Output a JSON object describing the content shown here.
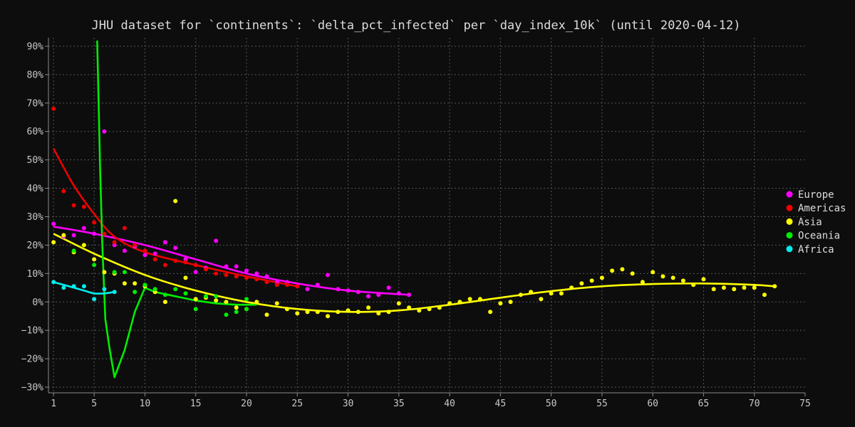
{
  "chart_data": {
    "type": "scatter",
    "title": "JHU dataset for `continents`: `delta_pct_infected` per `day_index_10k` (until 2020-04-12)",
    "xlabel": "",
    "ylabel": "",
    "xlim": [
      0.5,
      75
    ],
    "ylim": [
      -32,
      93
    ],
    "x_ticks": [
      1,
      5,
      10,
      15,
      20,
      25,
      30,
      35,
      40,
      45,
      50,
      55,
      60,
      65,
      70,
      75
    ],
    "y_ticks": [
      -30,
      -20,
      -10,
      0,
      10,
      20,
      30,
      40,
      50,
      60,
      70,
      80,
      90
    ],
    "y_tick_suffix": "%",
    "grid": true,
    "legend_position": "right",
    "series": [
      {
        "name": "Europe",
        "color": "#ff00ff",
        "points": [
          [
            1,
            27.5
          ],
          [
            2,
            23
          ],
          [
            3,
            23.5
          ],
          [
            4,
            26
          ],
          [
            5,
            24
          ],
          [
            6,
            60
          ],
          [
            7,
            20
          ],
          [
            8,
            18
          ],
          [
            9,
            19.5
          ],
          [
            10,
            16.5
          ],
          [
            11,
            17
          ],
          [
            12,
            21
          ],
          [
            13,
            19
          ],
          [
            14,
            15
          ],
          [
            15,
            10.5
          ],
          [
            16,
            12
          ],
          [
            17,
            21.5
          ],
          [
            18,
            12.5
          ],
          [
            19,
            12.5
          ],
          [
            20,
            11
          ],
          [
            21,
            10
          ],
          [
            22,
            9
          ],
          [
            23,
            7
          ],
          [
            24,
            7
          ],
          [
            25,
            5.5
          ],
          [
            26,
            4.5
          ],
          [
            27,
            6
          ],
          [
            28,
            9.5
          ],
          [
            29,
            4.5
          ],
          [
            30,
            4
          ],
          [
            31,
            3.5
          ],
          [
            32,
            2
          ],
          [
            33,
            2.5
          ],
          [
            34,
            5
          ],
          [
            35,
            3
          ],
          [
            36,
            2.5
          ]
        ],
        "trend": [
          [
            1,
            26.5
          ],
          [
            5,
            24
          ],
          [
            10,
            20
          ],
          [
            15,
            15
          ],
          [
            20,
            10
          ],
          [
            25,
            6.5
          ],
          [
            30,
            4
          ],
          [
            36,
            2.5
          ]
        ]
      },
      {
        "name": "Americas",
        "color": "#ee0000",
        "points": [
          [
            1,
            68
          ],
          [
            2,
            39
          ],
          [
            3,
            34
          ],
          [
            4,
            33.5
          ],
          [
            5,
            28
          ],
          [
            6,
            24
          ],
          [
            7,
            21
          ],
          [
            8,
            26
          ],
          [
            9,
            20
          ],
          [
            10,
            18
          ],
          [
            11,
            15
          ],
          [
            12,
            13
          ],
          [
            13,
            14.5
          ],
          [
            14,
            14
          ],
          [
            15,
            13
          ],
          [
            16,
            11.5
          ],
          [
            17,
            10
          ],
          [
            18,
            9.5
          ],
          [
            19,
            9
          ],
          [
            20,
            8.5
          ],
          [
            21,
            8
          ],
          [
            22,
            7
          ],
          [
            23,
            6
          ],
          [
            24,
            6
          ],
          [
            25,
            5.5
          ]
        ],
        "trend": [
          [
            1,
            54
          ],
          [
            3,
            41
          ],
          [
            5,
            31
          ],
          [
            7,
            23
          ],
          [
            10,
            17.5
          ],
          [
            15,
            13
          ],
          [
            20,
            9
          ],
          [
            25,
            5.5
          ]
        ]
      },
      {
        "name": "Asia",
        "color": "#ffff00",
        "points": [
          [
            1,
            21
          ],
          [
            2,
            23.5
          ],
          [
            3,
            17.5
          ],
          [
            4,
            20
          ],
          [
            5,
            15
          ],
          [
            6,
            10.5
          ],
          [
            7,
            10
          ],
          [
            8,
            6.5
          ],
          [
            9,
            6.5
          ],
          [
            10,
            5.5
          ],
          [
            11,
            3.5
          ],
          [
            12,
            0
          ],
          [
            13,
            35.5
          ],
          [
            14,
            8.5
          ],
          [
            15,
            1
          ],
          [
            16,
            1.5
          ],
          [
            17,
            0.5
          ],
          [
            18,
            0
          ],
          [
            19,
            -2
          ],
          [
            20,
            -2.5
          ],
          [
            21,
            0
          ],
          [
            22,
            -4.5
          ],
          [
            23,
            -0.5
          ],
          [
            24,
            -2.5
          ],
          [
            25,
            -4
          ],
          [
            26,
            -3.5
          ],
          [
            27,
            -3.5
          ],
          [
            28,
            -5
          ],
          [
            29,
            -3.5
          ],
          [
            30,
            -3
          ],
          [
            31,
            -3.5
          ],
          [
            32,
            -2
          ],
          [
            33,
            -4
          ],
          [
            34,
            -3.5
          ],
          [
            35,
            -0.5
          ],
          [
            36,
            -2
          ],
          [
            37,
            -3
          ],
          [
            38,
            -2.5
          ],
          [
            39,
            -2
          ],
          [
            40,
            -0.5
          ],
          [
            41,
            0
          ],
          [
            42,
            1
          ],
          [
            43,
            1
          ],
          [
            44,
            -3.5
          ],
          [
            45,
            -0.5
          ],
          [
            46,
            0
          ],
          [
            47,
            2.5
          ],
          [
            48,
            3.5
          ],
          [
            49,
            1
          ],
          [
            50,
            3
          ],
          [
            51,
            3
          ],
          [
            52,
            5
          ],
          [
            53,
            6.5
          ],
          [
            54,
            7.5
          ],
          [
            55,
            8.5
          ],
          [
            56,
            11
          ],
          [
            57,
            11.5
          ],
          [
            58,
            10
          ],
          [
            59,
            7
          ],
          [
            60,
            10.5
          ],
          [
            61,
            9
          ],
          [
            62,
            8.5
          ],
          [
            63,
            7.5
          ],
          [
            64,
            6
          ],
          [
            65,
            8
          ],
          [
            66,
            4.5
          ],
          [
            67,
            5
          ],
          [
            68,
            4.5
          ],
          [
            69,
            5
          ],
          [
            70,
            5
          ],
          [
            71,
            2.5
          ],
          [
            72,
            5.5
          ]
        ],
        "trend": [
          [
            1,
            24
          ],
          [
            5,
            17
          ],
          [
            10,
            9.5
          ],
          [
            15,
            4
          ],
          [
            20,
            0
          ],
          [
            25,
            -2.5
          ],
          [
            30,
            -3.5
          ],
          [
            35,
            -3
          ],
          [
            40,
            -1
          ],
          [
            45,
            1.5
          ],
          [
            50,
            3.8
          ],
          [
            55,
            5.5
          ],
          [
            60,
            6.3
          ],
          [
            65,
            6.5
          ],
          [
            70,
            6
          ],
          [
            72,
            5.5
          ]
        ]
      },
      {
        "name": "Oceania",
        "color": "#00ee00",
        "points": [
          [
            3,
            18
          ],
          [
            5,
            13
          ],
          [
            7,
            10.5
          ],
          [
            8,
            10.5
          ],
          [
            9,
            3.5
          ],
          [
            10,
            6
          ],
          [
            11,
            4.5
          ],
          [
            12,
            2.5
          ],
          [
            13,
            4.5
          ],
          [
            14,
            3
          ],
          [
            15,
            -2.5
          ],
          [
            16,
            2
          ],
          [
            17,
            2
          ],
          [
            18,
            -4.5
          ],
          [
            19,
            -3.5
          ],
          [
            20,
            1
          ],
          [
            20,
            -2.5
          ]
        ],
        "trend": [
          [
            5.3,
            92
          ],
          [
            5.6,
            45
          ],
          [
            5.8,
            20
          ],
          [
            6.1,
            -6
          ],
          [
            6.5,
            -16
          ],
          [
            7,
            -26.5
          ],
          [
            8,
            -17
          ],
          [
            9,
            -3.5
          ],
          [
            10,
            5
          ],
          [
            11,
            3.5
          ],
          [
            13,
            2
          ],
          [
            15,
            0.5
          ],
          [
            17,
            -0.5
          ],
          [
            19,
            -1
          ],
          [
            21,
            -1
          ]
        ]
      },
      {
        "name": "Africa",
        "color": "#00eeee",
        "points": [
          [
            1,
            7
          ],
          [
            2,
            5
          ],
          [
            3,
            5.5
          ],
          [
            4,
            5.5
          ],
          [
            5,
            1
          ],
          [
            6,
            4.5
          ],
          [
            7,
            3.5
          ]
        ],
        "trend": [
          [
            1,
            7
          ],
          [
            2,
            6
          ],
          [
            3,
            5
          ],
          [
            4,
            4
          ],
          [
            5,
            3
          ],
          [
            6,
            3
          ],
          [
            7,
            3.5
          ]
        ]
      }
    ]
  }
}
